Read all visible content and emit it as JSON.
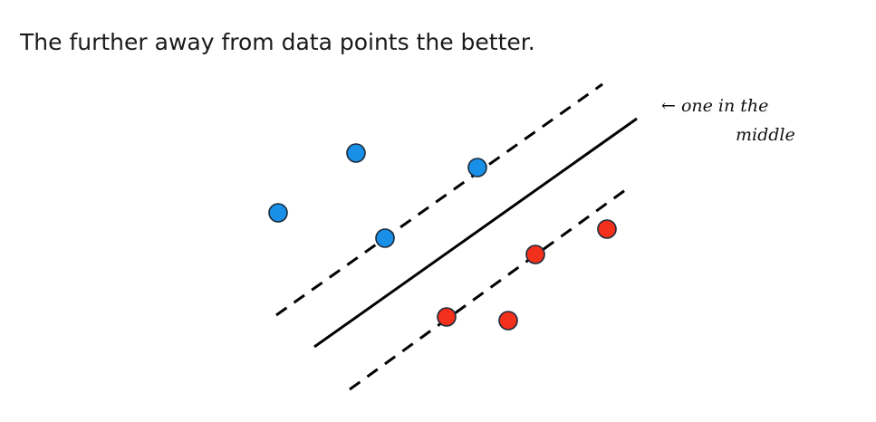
{
  "heading": "The further away from data points the better.",
  "annotation": {
    "line1": "← one in the",
    "line2": "middle"
  },
  "colors": {
    "class_a": "#1a8fe8",
    "class_b": "#f2301b",
    "line": "#000000"
  },
  "diagram": {
    "class_a_count": 4,
    "class_b_count": 4,
    "lines": [
      "margin-upper-dashed",
      "decision-boundary-solid",
      "margin-lower-dashed"
    ]
  }
}
